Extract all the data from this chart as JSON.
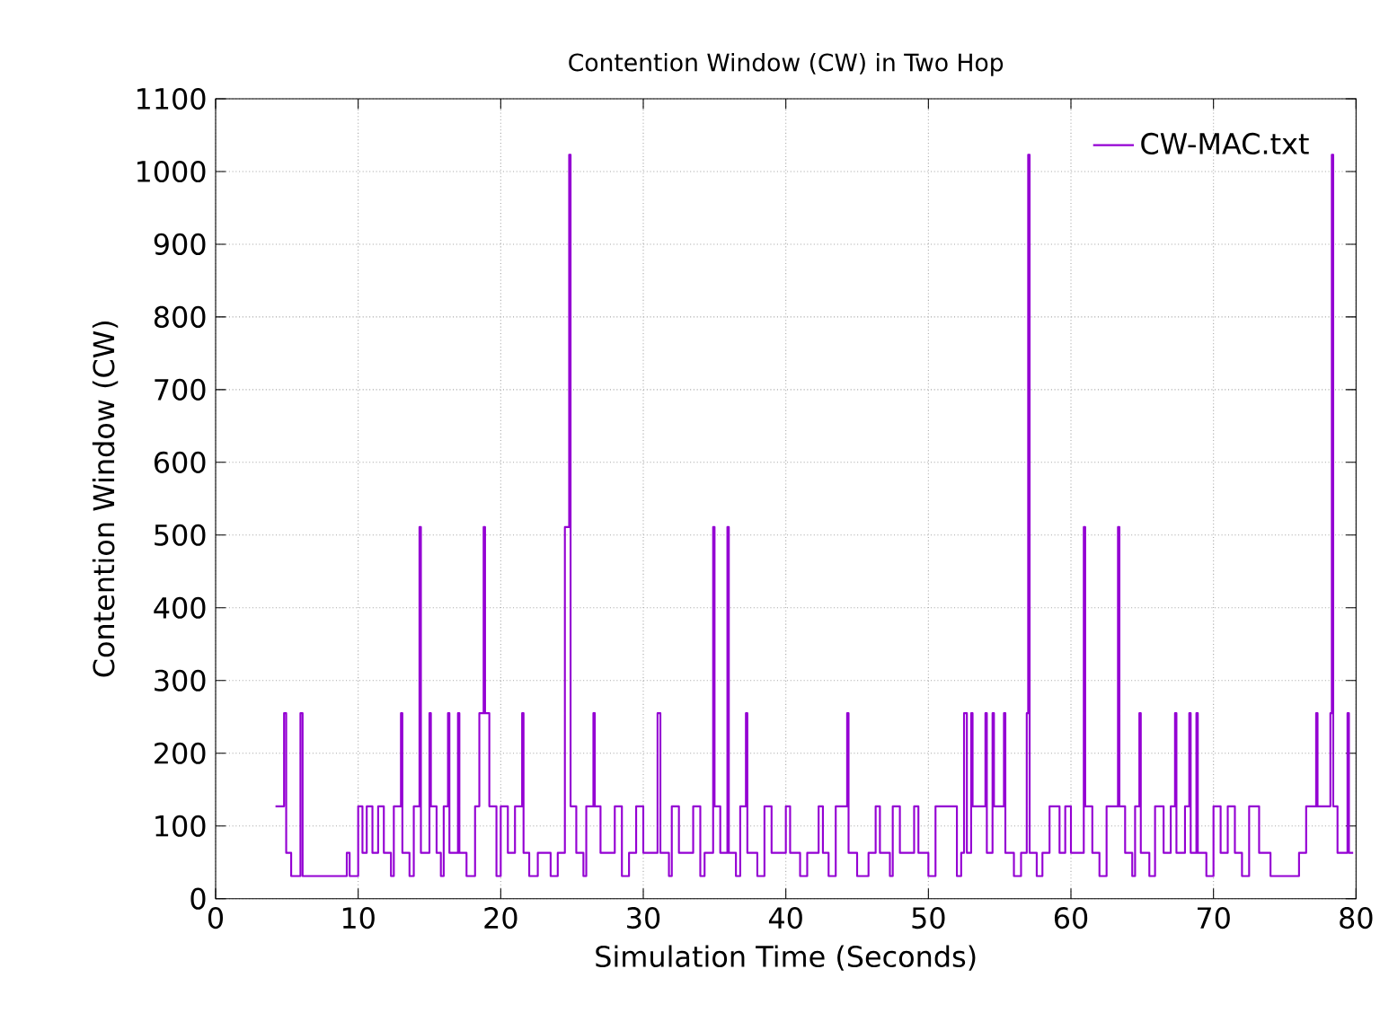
{
  "chart_data": {
    "type": "step",
    "title": "Contention Window (CW) in Two Hop",
    "xlabel": "Simulation Time (Seconds)",
    "ylabel": "Contention Window (CW)",
    "xlim": [
      0,
      80
    ],
    "ylim": [
      0,
      1100
    ],
    "xticks": [
      0,
      10,
      20,
      30,
      40,
      50,
      60,
      70,
      80
    ],
    "yticks": [
      0,
      100,
      200,
      300,
      400,
      500,
      600,
      700,
      800,
      900,
      1000,
      1100
    ],
    "grid": true,
    "legend": "top right",
    "marker": "none",
    "line_style": "solid",
    "series": [
      {
        "name": "CW-MAC.txt",
        "color": "#9400d3",
        "x": [
          4.2,
          4.8,
          4.95,
          5.3,
          5.95,
          6.1,
          9.2,
          9.4,
          10.0,
          10.3,
          10.6,
          11.0,
          11.4,
          11.8,
          12.3,
          12.5,
          13.0,
          13.1,
          13.6,
          13.9,
          14.3,
          14.4,
          15.0,
          15.1,
          15.5,
          15.8,
          16.0,
          16.3,
          16.4,
          17.0,
          17.1,
          17.6,
          18.2,
          18.5,
          18.8,
          18.9,
          19.2,
          19.7,
          20.0,
          20.5,
          21.0,
          21.5,
          21.6,
          22.0,
          22.6,
          23.5,
          24.0,
          24.5,
          24.8,
          24.9,
          25.3,
          25.8,
          26.0,
          26.5,
          26.6,
          27.0,
          28.0,
          28.5,
          29.0,
          29.5,
          30.0,
          31.0,
          31.2,
          31.8,
          32.0,
          32.5,
          33.5,
          34.0,
          34.3,
          34.9,
          35.0,
          35.4,
          35.9,
          36.0,
          36.5,
          36.8,
          37.2,
          37.3,
          38.0,
          38.5,
          39.0,
          40.0,
          40.3,
          41.0,
          41.5,
          42.3,
          42.6,
          43.0,
          43.5,
          44.3,
          44.4,
          45.0,
          45.8,
          46.3,
          46.6,
          47.3,
          47.5,
          48.0,
          49.0,
          49.3,
          50.0,
          50.5,
          52.0,
          52.3,
          52.5,
          52.7,
          53.0,
          53.1,
          54.0,
          54.1,
          54.5,
          54.6,
          55.3,
          55.4,
          56.0,
          56.5,
          56.9,
          57.0,
          57.1,
          57.6,
          58.0,
          58.5,
          59.2,
          59.6,
          60.0,
          60.9,
          61.0,
          61.5,
          62.0,
          62.5,
          63.3,
          63.4,
          63.8,
          64.3,
          64.5,
          64.8,
          64.9,
          65.5,
          65.9,
          66.5,
          67.0,
          67.3,
          67.4,
          68.0,
          68.3,
          68.4,
          68.8,
          68.9,
          69.5,
          70.0,
          70.5,
          71.0,
          71.5,
          72.0,
          72.5,
          73.2,
          74.0,
          76.0,
          76.5,
          77.2,
          77.3,
          78.2,
          78.3,
          78.4,
          78.7,
          79.4,
          79.5,
          79.8
        ],
        "values": [
          127,
          255,
          63,
          31,
          255,
          31,
          63,
          31,
          127,
          63,
          127,
          63,
          127,
          63,
          31,
          127,
          255,
          63,
          31,
          127,
          511,
          63,
          255,
          127,
          63,
          31,
          127,
          255,
          63,
          255,
          63,
          31,
          127,
          255,
          511,
          255,
          127,
          31,
          127,
          63,
          127,
          255,
          63,
          31,
          63,
          31,
          63,
          511,
          1023,
          127,
          63,
          31,
          127,
          255,
          127,
          63,
          127,
          31,
          63,
          127,
          63,
          255,
          63,
          31,
          127,
          63,
          127,
          31,
          63,
          511,
          127,
          63,
          511,
          63,
          31,
          127,
          255,
          63,
          31,
          127,
          63,
          127,
          63,
          31,
          63,
          127,
          63,
          31,
          127,
          255,
          63,
          31,
          63,
          127,
          63,
          31,
          127,
          63,
          127,
          63,
          31,
          127,
          31,
          63,
          255,
          63,
          255,
          127,
          255,
          63,
          255,
          127,
          255,
          63,
          31,
          63,
          255,
          1023,
          63,
          31,
          63,
          127,
          63,
          127,
          63,
          511,
          127,
          63,
          31,
          127,
          511,
          127,
          63,
          31,
          127,
          255,
          63,
          31,
          127,
          63,
          127,
          255,
          63,
          127,
          255,
          63,
          255,
          63,
          31,
          127,
          63,
          127,
          63,
          31,
          127,
          63,
          31,
          63,
          127,
          255,
          127,
          255,
          1023,
          127,
          63,
          255,
          63,
          63
        ]
      }
    ]
  }
}
